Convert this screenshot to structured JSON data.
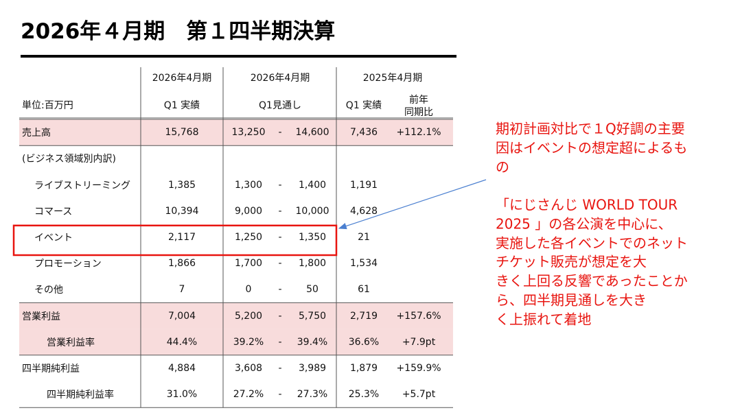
{
  "header": {
    "title": "2026年４月期　第１四半期決算"
  },
  "table": {
    "unit": "単位:百万円",
    "column_headers": [
      {
        "period": "2026年4月期",
        "label": "Q1 実績"
      },
      {
        "period": "2026年4月期",
        "label": "Q1見通し"
      },
      {
        "period": "2025年4月期",
        "label": "Q1 実績"
      },
      {
        "label_lines": [
          "前年",
          "同期比"
        ]
      }
    ],
    "range_separator": "-",
    "rows": [
      {
        "label": "売上高",
        "actual": "15,768",
        "forecast_low": "13,250",
        "forecast_high": "14,600",
        "prior": "7,436",
        "yoy": "+112.1%"
      },
      {
        "label": "(ビジネス領域別内訳)"
      },
      {
        "label": "ライブストリーミング",
        "actual": "1,385",
        "forecast_low": "1,300",
        "forecast_high": "1,400",
        "prior": "1,191"
      },
      {
        "label": "コマース",
        "actual": "10,394",
        "forecast_low": "9,000",
        "forecast_high": "10,000",
        "prior": "4,628"
      },
      {
        "label": "イベント",
        "actual": "2,117",
        "forecast_low": "1,250",
        "forecast_high": "1,350",
        "prior": "21"
      },
      {
        "label": "プロモーション",
        "actual": "1,866",
        "forecast_low": "1,700",
        "forecast_high": "1,800",
        "prior": "1,534"
      },
      {
        "label": "その他",
        "actual": "7",
        "forecast_low": "0",
        "forecast_high": "50",
        "prior": "61"
      },
      {
        "label": "営業利益",
        "actual": "7,004",
        "forecast_low": "5,200",
        "forecast_high": "5,750",
        "prior": "2,719",
        "yoy": "+157.6%"
      },
      {
        "label": "営業利益率",
        "actual": "44.4%",
        "forecast_low": "39.2%",
        "forecast_high": "39.4%",
        "prior": "36.6%",
        "yoy": "+7.9pt"
      },
      {
        "label": "四半期純利益",
        "actual": "4,884",
        "forecast_low": "3,608",
        "forecast_high": "3,989",
        "prior": "1,879",
        "yoy": "+159.9%"
      },
      {
        "label": "四半期純利益率",
        "actual": "31.0%",
        "forecast_low": "27.2%",
        "forecast_high": "27.3%",
        "prior": "25.3%",
        "yoy": "+5.7pt"
      }
    ]
  },
  "annotation": {
    "paragraphs": [
      [
        "期初計画対比で１Q好調の主要",
        "因はイベントの想定超によるも",
        "の"
      ],
      [
        "「にじさんじ WORLD TOUR",
        "2025 」の各公演を中心に、",
        "実施した各イベントでのネット",
        "チケット販売が想定を大",
        "きく上回る反響であったことか",
        "ら、四半期見通しを大き",
        "く上振れて着地"
      ]
    ]
  }
}
